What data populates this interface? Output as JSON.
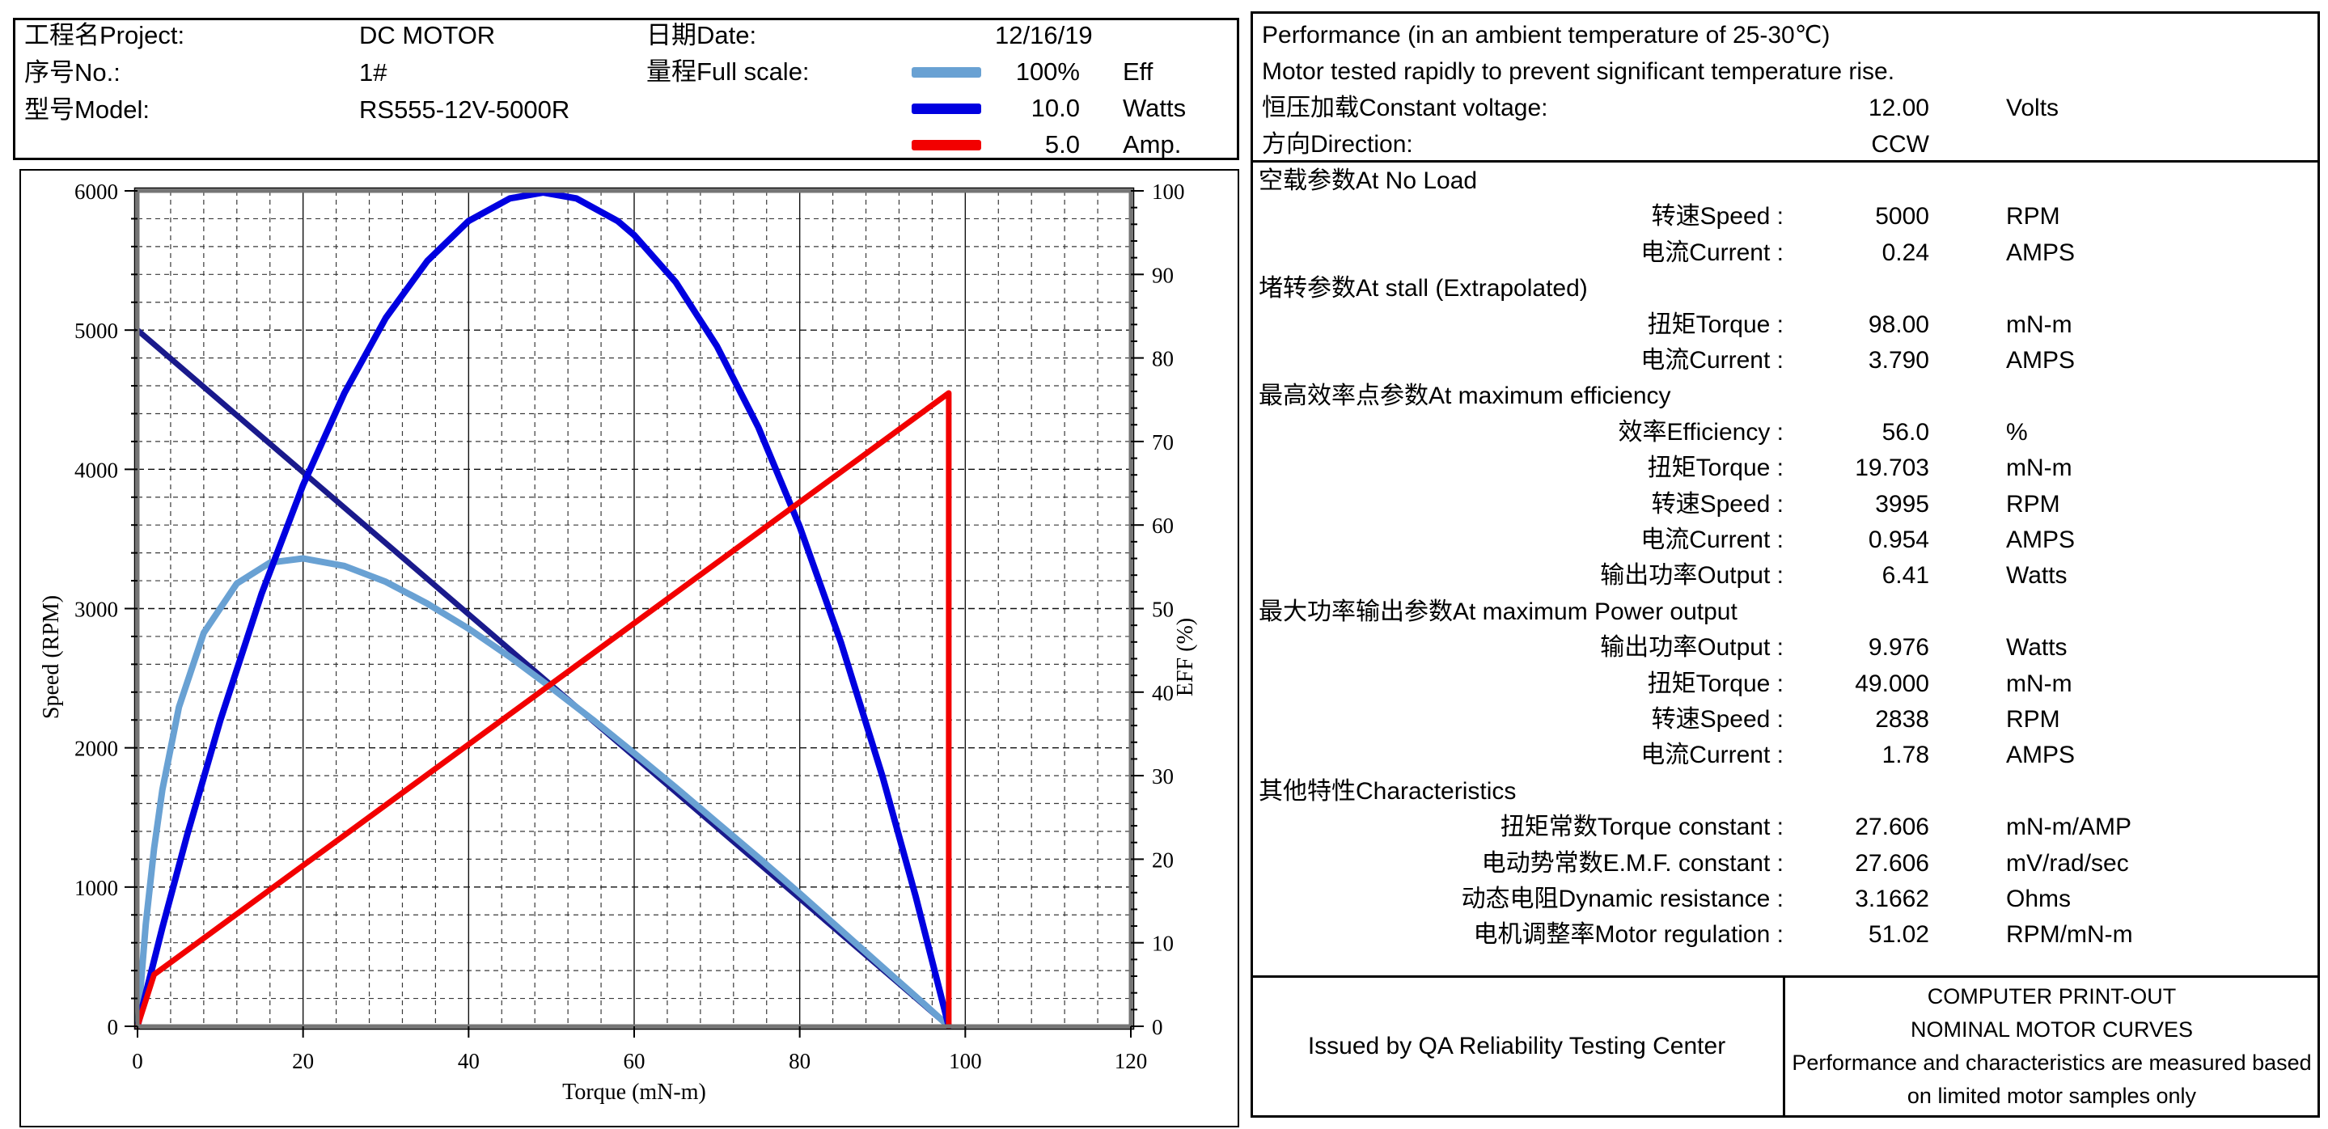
{
  "header": {
    "project_label": "工程名Project:",
    "project_value": "DC MOTOR",
    "no_label": "序号No.:",
    "no_value": "1#",
    "model_label": "型号Model:",
    "model_value": "RS555-12V-5000R",
    "date_label": "日期Date:",
    "date_value": "12/16/19",
    "full_scale_label": "量程Full scale:",
    "legend": [
      {
        "name": "efficiency",
        "color": "#69a1d3",
        "value": "100%",
        "unit": "Eff"
      },
      {
        "name": "power",
        "color": "#0000e0",
        "value": "10.0",
        "unit": "Watts"
      },
      {
        "name": "current",
        "color": "#f20000",
        "value": "5.0",
        "unit": "Amp."
      }
    ]
  },
  "performance": {
    "line1": "Performance (in an ambient temperature of 25-30℃)",
    "line2": "Motor tested rapidly to prevent significant temperature rise.",
    "voltage_label": "恒压加载Constant voltage:",
    "voltage_value": "12.00",
    "voltage_unit": "Volts",
    "direction_label": "方向Direction:",
    "direction_value": "CCW",
    "rows": [
      {
        "type": "section",
        "label": "空载参数At No Load"
      },
      {
        "type": "kv",
        "label": "转速Speed :",
        "value": "5000",
        "unit": "RPM"
      },
      {
        "type": "kv",
        "label": "电流Current :",
        "value": "0.24",
        "unit": "AMPS"
      },
      {
        "type": "section",
        "label": "堵转参数At stall (Extrapolated)"
      },
      {
        "type": "kv",
        "label": "扭矩Torque :",
        "value": "98.00",
        "unit": "mN-m"
      },
      {
        "type": "kv",
        "label": "电流Current :",
        "value": "3.790",
        "unit": "AMPS"
      },
      {
        "type": "section",
        "label": "最高效率点参数At maximum efficiency"
      },
      {
        "type": "kv",
        "label": "效率Efficiency :",
        "value": "56.0",
        "unit": "%"
      },
      {
        "type": "kv",
        "label": "扭矩Torque :",
        "value": "19.703",
        "unit": "mN-m"
      },
      {
        "type": "kv",
        "label": "转速Speed :",
        "value": "3995",
        "unit": "RPM"
      },
      {
        "type": "kv",
        "label": "电流Current :",
        "value": "0.954",
        "unit": "AMPS"
      },
      {
        "type": "kv",
        "label": "输出功率Output :",
        "value": "6.41",
        "unit": "Watts"
      },
      {
        "type": "section",
        "label": "最大功率输出参数At maximum Power output"
      },
      {
        "type": "kv",
        "label": "输出功率Output :",
        "value": "9.976",
        "unit": "Watts"
      },
      {
        "type": "kv",
        "label": "扭矩Torque :",
        "value": "49.000",
        "unit": "mN-m"
      },
      {
        "type": "kv",
        "label": "转速Speed :",
        "value": "2838",
        "unit": "RPM"
      },
      {
        "type": "kv",
        "label": "电流Current :",
        "value": "1.78",
        "unit": "AMPS"
      },
      {
        "type": "section",
        "label": "其他特性Characteristics"
      },
      {
        "type": "kv",
        "label": "扭矩常数Torque constant :",
        "value": "27.606",
        "unit": "mN-m/AMP"
      },
      {
        "type": "kv",
        "label": "电动势常数E.M.F. constant :",
        "value": "27.606",
        "unit": "mV/rad/sec"
      },
      {
        "type": "kv",
        "label": "动态电阻Dynamic resistance :",
        "value": "3.1662",
        "unit": "Ohms"
      },
      {
        "type": "kv",
        "label": "电机调整率Motor regulation :",
        "value": "51.02",
        "unit": "RPM/mN-m"
      }
    ]
  },
  "footer": {
    "issued": "Issued by QA Reliability Testing Center",
    "note_lines": [
      "COMPUTER PRINT-OUT",
      "NOMINAL MOTOR CURVES",
      "Performance and characteristics are measured based",
      "on limited motor samples only"
    ]
  },
  "chart_data": {
    "type": "line",
    "xlabel": "Torque (mN-m)",
    "ylabel_left": "Speed (RPM)",
    "ylabel_right": "EFF (%)",
    "x_range": [
      0,
      120
    ],
    "x_major": 20,
    "x_minor": 4,
    "y_left_range": [
      0,
      6000
    ],
    "y_left_major": 1000,
    "y_left_minor": 200,
    "y_right_range": [
      0,
      100
    ],
    "y_right_major": 10,
    "y_right_minor": 2,
    "grid": "on",
    "legend_position": "header-top",
    "series": [
      {
        "name": "Speed",
        "unit": "RPM",
        "full_scale": 6000,
        "color": "#1a1a8c",
        "width": 7,
        "points": [
          [
            0,
            5000
          ],
          [
            98,
            0
          ]
        ]
      },
      {
        "name": "Efficiency",
        "unit": "%",
        "full_scale": 100,
        "color": "#69a1d3",
        "width": 8,
        "points": [
          [
            0,
            0
          ],
          [
            1,
            12.2
          ],
          [
            2,
            21.3
          ],
          [
            3,
            28.3
          ],
          [
            5,
            38.2
          ],
          [
            8,
            47.1
          ],
          [
            12,
            53.0
          ],
          [
            16,
            55.5
          ],
          [
            20,
            56.0
          ],
          [
            25,
            55.1
          ],
          [
            30,
            53.2
          ],
          [
            35,
            50.6
          ],
          [
            40,
            47.6
          ],
          [
            45,
            44.2
          ],
          [
            50,
            40.5
          ],
          [
            55,
            36.7
          ],
          [
            60,
            32.7
          ],
          [
            65,
            28.6
          ],
          [
            70,
            24.4
          ],
          [
            75,
            20.2
          ],
          [
            80,
            15.9
          ],
          [
            85,
            11.5
          ],
          [
            90,
            7.1
          ],
          [
            95,
            2.7
          ],
          [
            98,
            0
          ]
        ]
      },
      {
        "name": "Power",
        "unit": "Watts",
        "full_scale": 10,
        "color": "#0000e0",
        "width": 8,
        "points": [
          [
            0,
            0
          ],
          [
            3,
            1.18
          ],
          [
            6,
            2.29
          ],
          [
            10,
            3.66
          ],
          [
            15,
            5.18
          ],
          [
            20,
            6.48
          ],
          [
            25,
            7.58
          ],
          [
            30,
            8.48
          ],
          [
            35,
            9.16
          ],
          [
            40,
            9.64
          ],
          [
            45,
            9.91
          ],
          [
            49,
            9.98
          ],
          [
            53,
            9.91
          ],
          [
            58,
            9.64
          ],
          [
            60,
            9.47
          ],
          [
            65,
            8.91
          ],
          [
            70,
            8.14
          ],
          [
            75,
            7.17
          ],
          [
            80,
            5.98
          ],
          [
            85,
            4.59
          ],
          [
            90,
            2.99
          ],
          [
            94,
            1.56
          ],
          [
            98,
            0
          ]
        ]
      },
      {
        "name": "Current",
        "unit": "Amp",
        "full_scale": 5,
        "color": "#f20000",
        "width": 7,
        "points": [
          [
            0,
            0
          ],
          [
            2,
            0.31
          ],
          [
            98,
            3.79
          ],
          [
            98,
            0
          ]
        ]
      }
    ]
  }
}
